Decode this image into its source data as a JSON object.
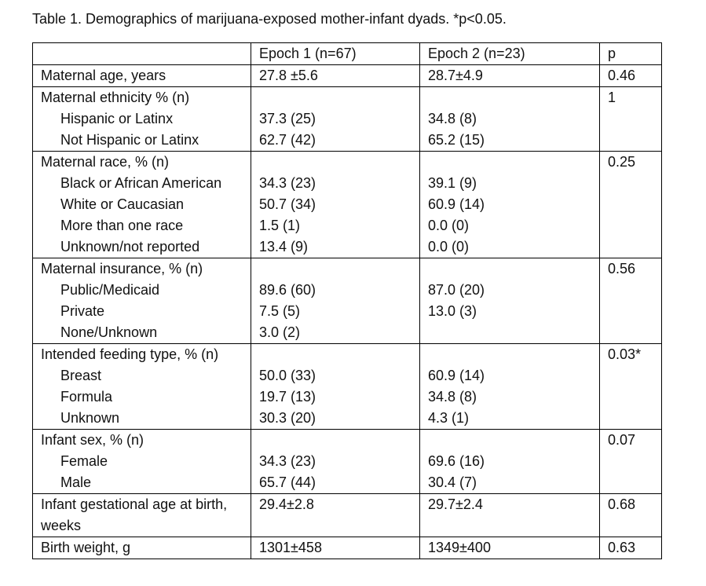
{
  "caption": "Table 1. Demographics of marijuana-exposed mother-infant dyads. *p<0.05.",
  "header": {
    "label": "",
    "epoch1": "Epoch 1 (n=67)",
    "epoch2": "Epoch 2 (n=23)",
    "p": "p"
  },
  "sections": [
    {
      "label": "Maternal age, years",
      "epoch1": "27.8 ±5.6",
      "epoch2": "28.7±4.9",
      "p": "0.46",
      "rows": []
    },
    {
      "label": "Maternal ethnicity % (n)",
      "epoch1": "",
      "epoch2": "",
      "p": "1",
      "rows": [
        {
          "label": "Hispanic or Latinx",
          "epoch1": "37.3 (25)",
          "epoch2": "34.8 (8)"
        },
        {
          "label": "Not Hispanic or Latinx",
          "epoch1": "62.7 (42)",
          "epoch2": "65.2 (15)"
        }
      ]
    },
    {
      "label": "Maternal race, % (n)",
      "epoch1": "",
      "epoch2": "",
      "p": "0.25",
      "rows": [
        {
          "label": "Black or African American",
          "epoch1": "34.3 (23)",
          "epoch2": "39.1 (9)"
        },
        {
          "label": "White or Caucasian",
          "epoch1": "50.7 (34)",
          "epoch2": "60.9 (14)"
        },
        {
          "label": "More than one race",
          "epoch1": "1.5 (1)",
          "epoch2": "0.0 (0)"
        },
        {
          "label": "Unknown/not reported",
          "epoch1": "13.4 (9)",
          "epoch2": "0.0 (0)"
        }
      ]
    },
    {
      "label": "Maternal insurance, % (n)",
      "epoch1": "",
      "epoch2": "",
      "p": "0.56",
      "rows": [
        {
          "label": "Public/Medicaid",
          "epoch1": "89.6 (60)",
          "epoch2": "87.0 (20)"
        },
        {
          "label": "Private",
          "epoch1": "7.5 (5)",
          "epoch2": "13.0 (3)"
        },
        {
          "label": "None/Unknown",
          "epoch1": "3.0 (2)",
          "epoch2": ""
        }
      ]
    },
    {
      "label": "Intended feeding type, % (n)",
      "epoch1": "",
      "epoch2": "",
      "p": "0.03*",
      "rows": [
        {
          "label": "Breast",
          "epoch1": "50.0 (33)",
          "epoch2": "60.9 (14)"
        },
        {
          "label": "Formula",
          "epoch1": "19.7 (13)",
          "epoch2": "34.8 (8)"
        },
        {
          "label": "Unknown",
          "epoch1": "30.3 (20)",
          "epoch2": "4.3 (1)"
        }
      ]
    },
    {
      "label": "Infant sex, % (n)",
      "epoch1": "",
      "epoch2": "",
      "p": "0.07",
      "rows": [
        {
          "label": "Female",
          "epoch1": "34.3 (23)",
          "epoch2": "69.6 (16)"
        },
        {
          "label": "Male",
          "epoch1": "65.7 (44)",
          "epoch2": "30.4 (7)"
        }
      ]
    },
    {
      "label": "Infant gestational age at birth, weeks",
      "epoch1": "29.4±2.8",
      "epoch2": "29.7±2.4",
      "p": "0.68",
      "rows": []
    },
    {
      "label": "Birth weight, g",
      "epoch1": "1301±458",
      "epoch2": "1349±400",
      "p": "0.63",
      "rows": []
    }
  ]
}
